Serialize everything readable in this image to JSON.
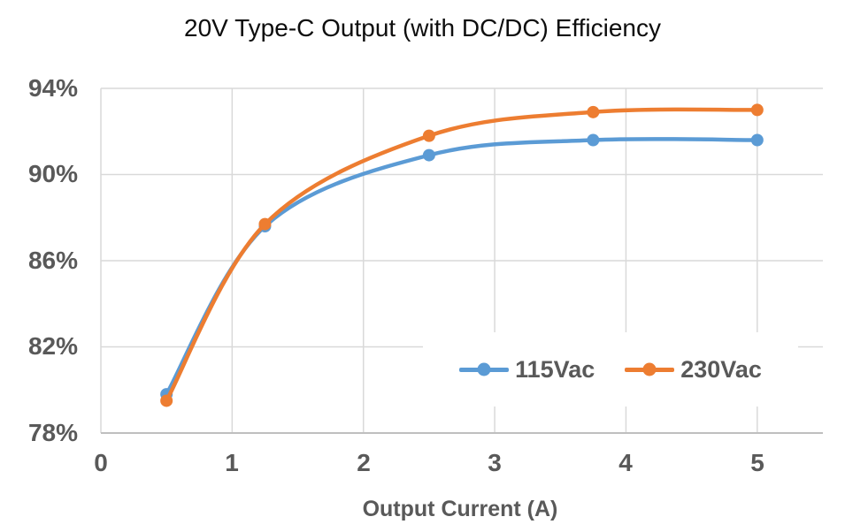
{
  "chart_data": {
    "type": "line",
    "title": "20V Type-C Output (with DC/DC) Efficiency",
    "xlabel": "Output Current (A)",
    "ylabel": "",
    "x": [
      0.5,
      1.25,
      2.5,
      3.75,
      5
    ],
    "series": [
      {
        "name": "115Vac",
        "color": "#5B9BD5",
        "values": [
          79.8,
          87.6,
          90.9,
          91.6,
          91.6
        ]
      },
      {
        "name": "230Vac",
        "color": "#ED7D31",
        "values": [
          79.5,
          87.7,
          91.8,
          92.9,
          93.0
        ]
      }
    ],
    "xlim": [
      0,
      5.5
    ],
    "ylim": [
      78,
      94
    ],
    "x_ticks": [
      0,
      1,
      2,
      3,
      4,
      5
    ],
    "x_tick_labels": [
      "0",
      "1",
      "2",
      "3",
      "4",
      "5"
    ],
    "y_ticks": [
      78,
      82,
      86,
      90,
      94
    ],
    "y_tick_labels": [
      "78%",
      "82%",
      "86%",
      "90%",
      "94%"
    ],
    "grid": true,
    "smooth": true,
    "legend_position": "inside-bottom-right"
  },
  "colors": {
    "background": "#FFFFFF",
    "grid": "#D9D9D9",
    "axis_line": "#BFBFBF",
    "tick_label": "#595959",
    "title": "#0D0D0D"
  }
}
